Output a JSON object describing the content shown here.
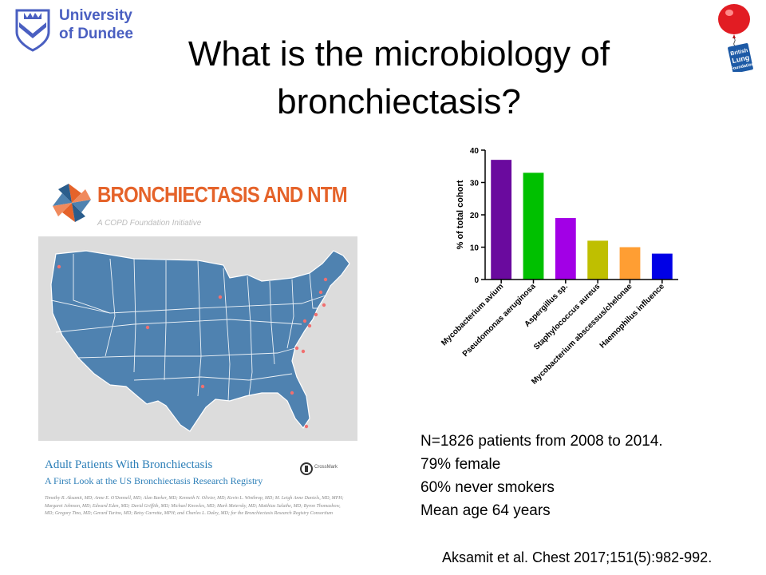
{
  "logos": {
    "dundee_line1": "University",
    "dundee_line2": "of Dundee",
    "blf_line1": "British",
    "blf_line2": "Lung",
    "blf_line3": "Foundation"
  },
  "title": {
    "line1": "What is the microbiology of",
    "line2": "bronchiectasis?"
  },
  "ntm": {
    "heading": "BRONCHIECTASIS AND NTM",
    "tagline": "A COPD Foundation Initiative"
  },
  "paper": {
    "title": "Adult Patients With Bronchiectasis",
    "subtitle": "A First Look at the US Bronchiectasis Research Registry",
    "crossmark": "CrossMark",
    "authors": "Timothy R. Aksamit, MD; Anne E. O'Donnell, MD; Alan Barker, MD; Kenneth N. Olivier, MD; Kevin L. Winthrop, MD; M. Leigh Anne Daniels, MD, MPH; Margaret Johnson, MD; Edward Eden, MD; David Griffith, MD; Michael Knowles, MD; Mark Metersky, MD; Matthias Salathe, MD; Byron Thomashow, MD; Gregory Tino, MD; Gerard Turino, MD; Betsy Carretta, MPH; and Charles L. Daley, MD; for the Bronchiectasis Research Registry Consortium"
  },
  "stats": {
    "line1": "N=1826 patients from 2008 to 2014.",
    "line2": "79% female",
    "line3": "60% never smokers",
    "line4": "Mean age 64 years"
  },
  "citation": "Aksamit et al. Chest 2017;151(5):982-992.",
  "colors": {
    "dundee_blue": "#4a5fc1",
    "ntm_orange": "#e5632a",
    "map_blue": "#4f82b0",
    "paper_blue": "#2d7fb8"
  },
  "chart_data": {
    "type": "bar",
    "title": "",
    "xlabel": "",
    "ylabel": "% of total cohort",
    "ylim": [
      0,
      40
    ],
    "yticks": [
      0,
      10,
      20,
      30,
      40
    ],
    "grid": false,
    "categories": [
      "Mycobacterium avium",
      "Pseudomonas aeruginosa",
      "Aspergillus sp.",
      "Staphylococcus aureus",
      "Mycobacterium abscessus/chelonae",
      "Haemophilus influence"
    ],
    "values": [
      37,
      33,
      19,
      12,
      10,
      8
    ],
    "colors": [
      "#6a0a9e",
      "#00c000",
      "#a200e6",
      "#bfbf00",
      "#ff9e33",
      "#0000e6"
    ]
  }
}
